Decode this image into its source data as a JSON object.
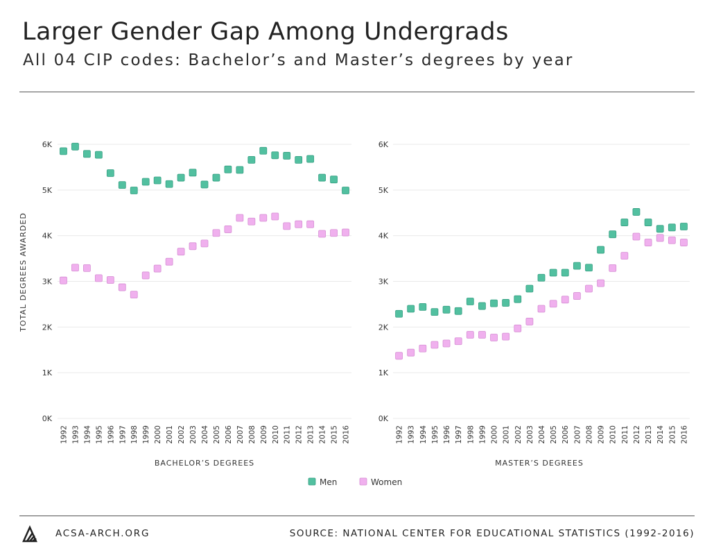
{
  "title": "Larger Gender Gap Among Undergrads",
  "subtitle": "All 04 CIP codes: Bachelor’s and Master’s degrees by year",
  "footer": {
    "site": "ACSA-ARCH.ORG",
    "source": "SOURCE: NATIONAL CENTER FOR EDUCATIONAL STATISTICS (1992-2016)"
  },
  "logo_icon": "acsa-logo-icon",
  "colors": {
    "men": "#52c0a0",
    "women": "#f0b0ee"
  },
  "chart_data": [
    {
      "type": "scatter",
      "xlabel": "BACHELOR’S DEGREES",
      "ylabel": "TOTAL DEGREES AWARDED",
      "ylim": [
        0,
        6000
      ],
      "yticks": [
        "0K",
        "1K",
        "2K",
        "3K",
        "4K",
        "5K",
        "6K"
      ],
      "x": [
        "1992",
        "1993",
        "1994",
        "1995",
        "1996",
        "1997",
        "1998",
        "1999",
        "2000",
        "2001",
        "2002",
        "2003",
        "2004",
        "2005",
        "2006",
        "2007",
        "2008",
        "2009",
        "2010",
        "2011",
        "2012",
        "2013",
        "2014",
        "2015",
        "2016"
      ],
      "grid": true,
      "legend": "bottom-center",
      "series": [
        {
          "name": "Men",
          "values": [
            5850,
            5950,
            5790,
            5770,
            5370,
            5110,
            4990,
            5180,
            5210,
            5130,
            5270,
            5380,
            5120,
            5270,
            5450,
            5440,
            5660,
            5860,
            5760,
            5750,
            5660,
            5680,
            5270,
            5230,
            4990
          ]
        },
        {
          "name": "Women",
          "values": [
            3020,
            3300,
            3290,
            3070,
            3030,
            2870,
            2710,
            3130,
            3280,
            3430,
            3650,
            3770,
            3830,
            4060,
            4140,
            4390,
            4310,
            4390,
            4420,
            4210,
            4250,
            4250,
            4040,
            4060,
            4070
          ]
        }
      ]
    },
    {
      "type": "scatter",
      "xlabel": "MASTER’S DEGREES",
      "ylabel": "",
      "ylim": [
        0,
        6000
      ],
      "yticks": [
        "0K",
        "1K",
        "2K",
        "3K",
        "4K",
        "5K",
        "6K"
      ],
      "x": [
        "1992",
        "1993",
        "1994",
        "1995",
        "1996",
        "1997",
        "1998",
        "1999",
        "2000",
        "2001",
        "2002",
        "2003",
        "2004",
        "2005",
        "2006",
        "2007",
        "2008",
        "2009",
        "2010",
        "2011",
        "2012",
        "2013",
        "2014",
        "2015",
        "2016"
      ],
      "grid": true,
      "legend": "bottom-center",
      "series": [
        {
          "name": "Men",
          "values": [
            2290,
            2400,
            2440,
            2330,
            2380,
            2350,
            2560,
            2460,
            2520,
            2530,
            2610,
            2840,
            3080,
            3190,
            3190,
            3340,
            3300,
            3690,
            4030,
            4290,
            4520,
            4290,
            4150,
            4180,
            4200
          ]
        },
        {
          "name": "Women",
          "values": [
            1370,
            1440,
            1530,
            1610,
            1640,
            1690,
            1830,
            1830,
            1770,
            1790,
            1970,
            2120,
            2400,
            2510,
            2600,
            2680,
            2840,
            2960,
            3290,
            3560,
            3980,
            3850,
            3950,
            3900,
            3850
          ]
        }
      ]
    }
  ]
}
